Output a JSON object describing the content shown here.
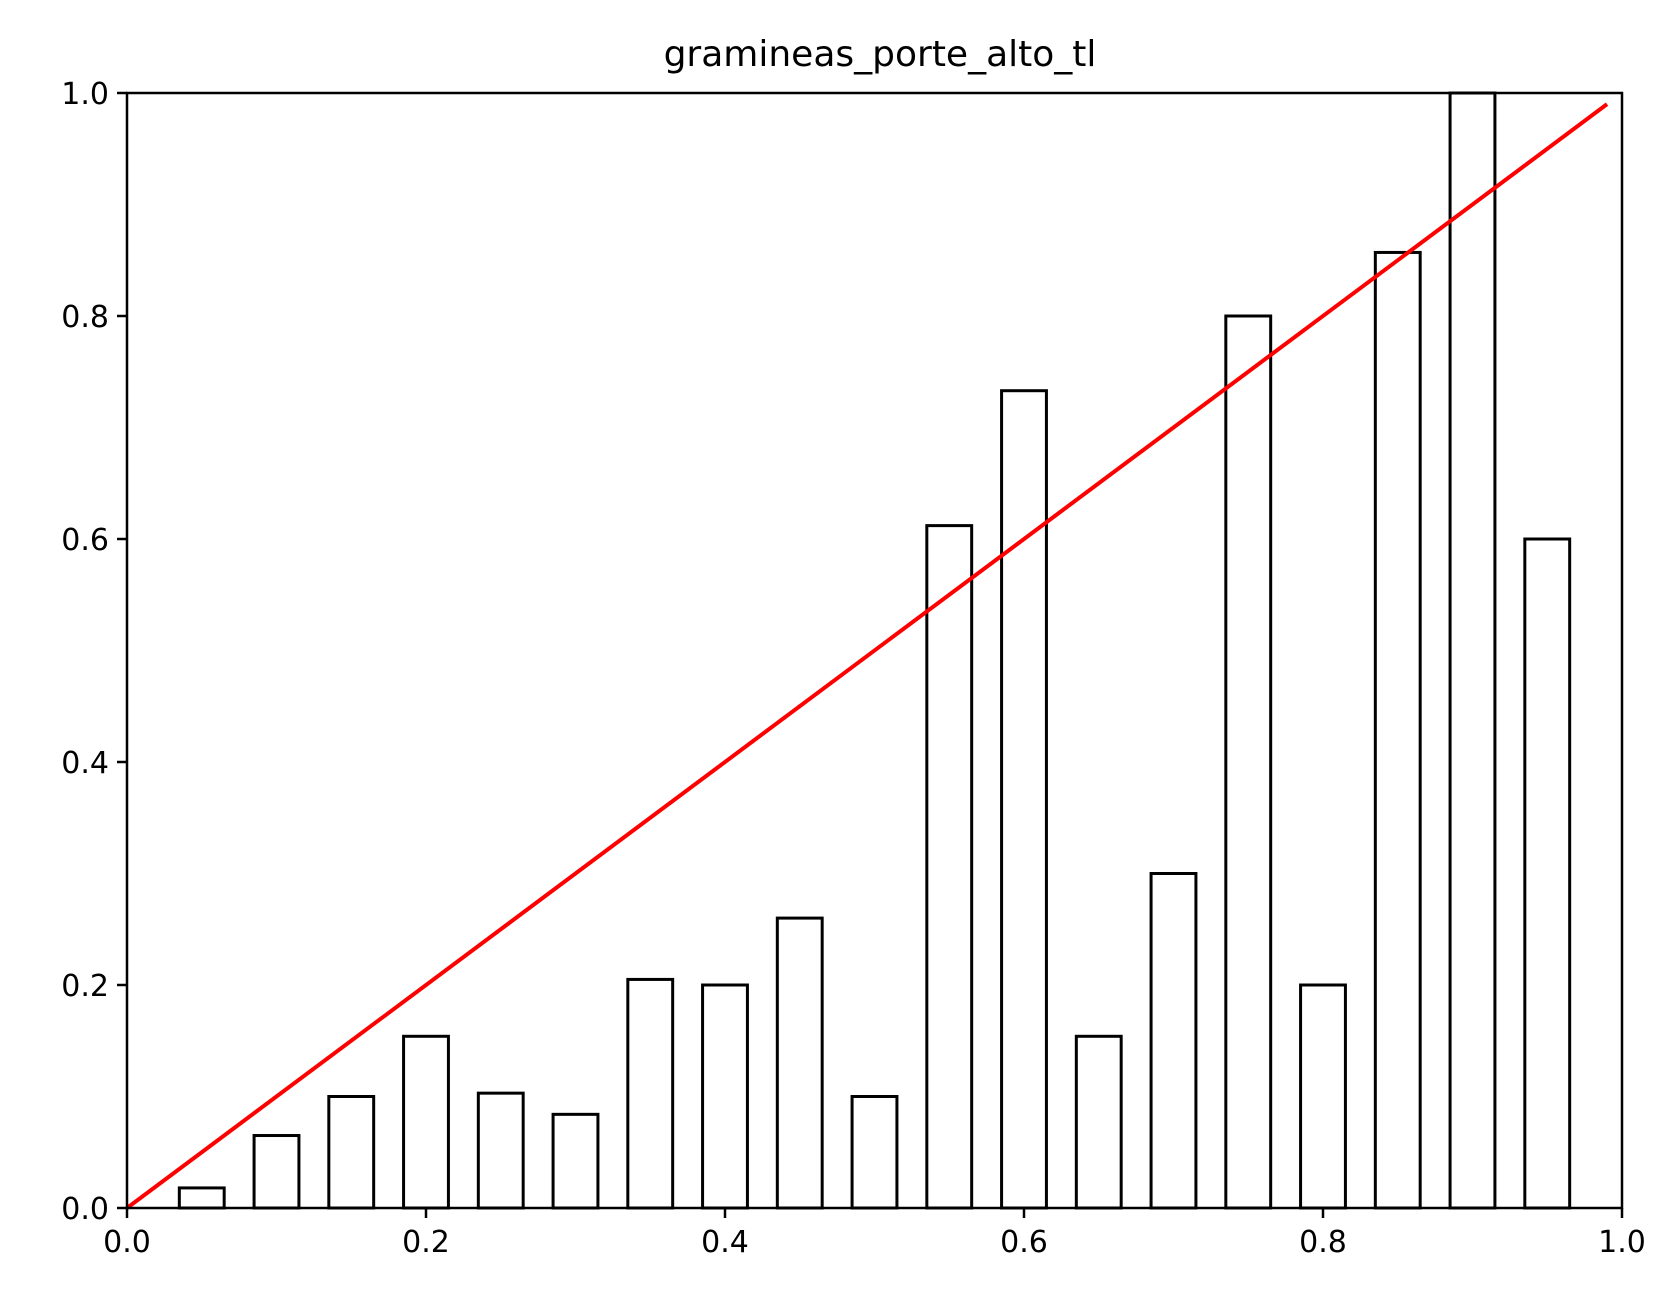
{
  "chart_data": {
    "type": "bar",
    "title": "gramineas_porte_alto_tl",
    "xlabel": "",
    "ylabel": "",
    "xlim": [
      0.0,
      1.0
    ],
    "ylim": [
      0.0,
      1.0
    ],
    "grid": false,
    "bar_width": 0.03,
    "x": [
      0.05,
      0.1,
      0.15,
      0.2,
      0.25,
      0.3,
      0.35,
      0.4,
      0.45,
      0.5,
      0.55,
      0.6,
      0.65,
      0.7,
      0.75,
      0.8,
      0.85,
      0.9,
      0.95
    ],
    "values": [
      0.018,
      0.065,
      0.1,
      0.154,
      0.103,
      0.084,
      0.205,
      0.2,
      0.26,
      0.1,
      0.612,
      0.733,
      0.154,
      0.3,
      0.8,
      0.2,
      0.857,
      1.0,
      0.6
    ],
    "reference_line": {
      "x": [
        0.0,
        0.99
      ],
      "y": [
        0.0,
        0.99
      ]
    },
    "xticks": [
      "0.0",
      "0.2",
      "0.4",
      "0.6",
      "0.8",
      "1.0"
    ],
    "yticks": [
      "0.0",
      "0.2",
      "0.4",
      "0.6",
      "0.8",
      "1.0"
    ],
    "colors": {
      "bar_fill": "#ffffff",
      "bar_edge": "#000000",
      "line": "#ff0000",
      "axes": "#000000"
    }
  }
}
